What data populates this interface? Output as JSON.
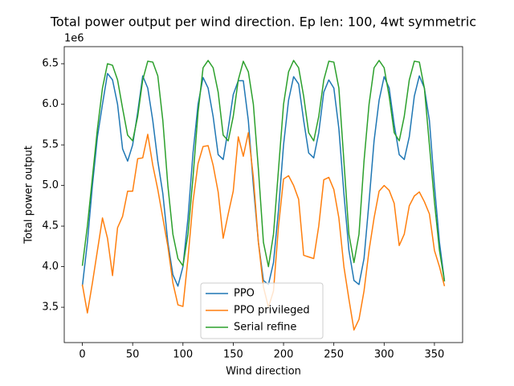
{
  "chart_data": {
    "type": "line",
    "title": "Total power output per wind direction. Ep len: 100, 4wt symmetric",
    "x_label": "Wind direction",
    "y_label": "Total power output",
    "y_offset_label": "1e6",
    "x": [
      0,
      5,
      10,
      15,
      20,
      25,
      30,
      35,
      40,
      45,
      50,
      55,
      60,
      65,
      70,
      75,
      80,
      85,
      90,
      95,
      100,
      105,
      110,
      115,
      120,
      125,
      130,
      135,
      140,
      145,
      150,
      155,
      160,
      165,
      170,
      175,
      180,
      185,
      190,
      195,
      200,
      205,
      210,
      215,
      220,
      225,
      230,
      235,
      240,
      245,
      250,
      255,
      260,
      265,
      270,
      275,
      280,
      285,
      290,
      295,
      300,
      305,
      310,
      315,
      320,
      325,
      330,
      335,
      340,
      345,
      350,
      355,
      360
    ],
    "series": [
      {
        "name": "PPO",
        "color": "#1f77b4",
        "values": [
          3.76,
          4.3,
          5.0,
          5.6,
          6.0,
          6.38,
          6.3,
          6.0,
          5.45,
          5.3,
          5.5,
          5.9,
          6.35,
          6.2,
          5.8,
          5.3,
          4.9,
          4.3,
          3.9,
          3.76,
          4.0,
          4.6,
          5.4,
          6.0,
          6.33,
          6.2,
          5.85,
          5.38,
          5.32,
          5.7,
          6.12,
          6.29,
          6.29,
          5.8,
          5.0,
          4.3,
          3.83,
          3.78,
          4.05,
          4.7,
          5.5,
          6.05,
          6.34,
          6.25,
          5.8,
          5.4,
          5.34,
          5.65,
          6.15,
          6.3,
          6.2,
          5.7,
          4.9,
          4.2,
          3.83,
          3.78,
          4.1,
          4.8,
          5.55,
          6.05,
          6.34,
          6.2,
          5.75,
          5.38,
          5.32,
          5.6,
          6.1,
          6.35,
          6.2,
          5.8,
          5.0,
          4.3,
          3.82
        ]
      },
      {
        "name": "PPO privileged",
        "color": "#ff7f0e",
        "values": [
          3.78,
          3.43,
          3.8,
          4.2,
          4.6,
          4.35,
          3.89,
          4.48,
          4.62,
          4.93,
          4.93,
          5.33,
          5.34,
          5.63,
          5.25,
          4.95,
          4.6,
          4.25,
          3.8,
          3.53,
          3.51,
          4.1,
          4.8,
          5.27,
          5.48,
          5.49,
          5.25,
          4.92,
          4.35,
          4.65,
          4.93,
          5.6,
          5.36,
          5.65,
          5.1,
          4.3,
          3.75,
          3.5,
          3.7,
          4.5,
          5.08,
          5.12,
          5.0,
          4.83,
          4.14,
          4.12,
          4.1,
          4.5,
          5.07,
          5.1,
          4.95,
          4.6,
          4.0,
          3.6,
          3.22,
          3.35,
          3.7,
          4.2,
          4.6,
          4.93,
          5.0,
          4.94,
          4.78,
          4.26,
          4.4,
          4.75,
          4.87,
          4.92,
          4.8,
          4.65,
          4.2,
          4.0,
          3.76
        ]
      },
      {
        "name": "Serial refine",
        "color": "#2ca02c",
        "values": [
          4.01,
          4.5,
          5.1,
          5.7,
          6.2,
          6.5,
          6.48,
          6.3,
          5.95,
          5.62,
          5.55,
          5.85,
          6.3,
          6.53,
          6.52,
          6.35,
          5.8,
          5.0,
          4.4,
          4.1,
          4.01,
          4.4,
          5.1,
          5.9,
          6.45,
          6.54,
          6.45,
          6.15,
          5.62,
          5.55,
          5.85,
          6.3,
          6.53,
          6.4,
          6.0,
          5.2,
          4.3,
          4.0,
          4.4,
          5.2,
          6.0,
          6.4,
          6.54,
          6.45,
          6.1,
          5.65,
          5.55,
          5.85,
          6.3,
          6.53,
          6.52,
          6.2,
          5.3,
          4.4,
          4.05,
          4.4,
          5.3,
          6.0,
          6.45,
          6.54,
          6.45,
          6.1,
          5.65,
          5.55,
          5.85,
          6.3,
          6.53,
          6.52,
          6.2,
          5.5,
          4.8,
          4.2,
          3.82
        ]
      }
    ],
    "xlim": [
      -18,
      378
    ],
    "xticks": [
      0,
      50,
      100,
      150,
      200,
      250,
      300,
      350
    ],
    "ylim": [
      3.065,
      6.71
    ],
    "yticks": [
      3.5,
      {
        "value": 4,
        "label": "4.0"
      },
      4.5,
      {
        "value": 5,
        "label": "5.0"
      },
      5.5,
      {
        "value": 6,
        "label": "6.0"
      },
      6.5
    ],
    "grid": false,
    "legend": "lower center"
  }
}
